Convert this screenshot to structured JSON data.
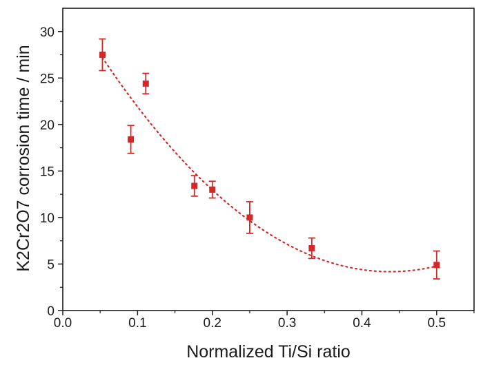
{
  "chart_data": {
    "type": "scatter",
    "xlabel": "Normalized Ti/Si ratio",
    "ylabel": "K2Cr2O7 corrosion time / min",
    "xlim": [
      0.0,
      0.55
    ],
    "ylim": [
      0,
      32.5
    ],
    "x_ticks": [
      0.0,
      0.1,
      0.2,
      0.3,
      0.4,
      0.5
    ],
    "x_tick_labels": [
      "0.0",
      "0.1",
      "0.2",
      "0.3",
      "0.4",
      "0.5"
    ],
    "y_ticks": [
      0,
      5,
      10,
      15,
      20,
      25,
      30
    ],
    "y_tick_labels": [
      "0",
      "5",
      "10",
      "15",
      "20",
      "25",
      "30"
    ],
    "grid": false,
    "legend": "none",
    "series": [
      {
        "x": [
          0.053,
          0.091,
          0.111,
          0.176,
          0.2,
          0.25,
          0.333,
          0.5
        ],
        "y": [
          27.5,
          18.4,
          24.4,
          13.4,
          13.0,
          10.0,
          6.7,
          4.9
        ],
        "error": [
          1.7,
          1.5,
          1.1,
          1.1,
          0.9,
          1.7,
          1.1,
          1.5
        ],
        "color": "#d62728"
      }
    ],
    "fit_curve": {
      "type": "quadratic",
      "x_range": [
        0.053,
        0.5
      ],
      "points": [
        [
          0.053,
          27.2
        ],
        [
          0.25,
          9.6
        ],
        [
          0.44,
          4.3
        ],
        [
          0.5,
          4.7
        ]
      ],
      "style": "dotted",
      "color": "#d62728"
    }
  }
}
